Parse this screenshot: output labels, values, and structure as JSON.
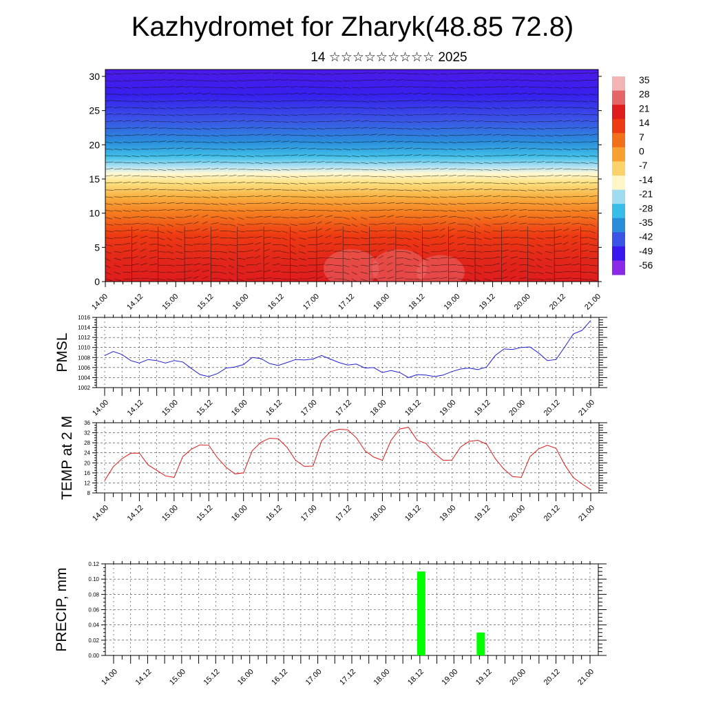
{
  "title": "Kazhydromet for Zharyk(48.85 72.8)",
  "subtitle": "14 ☆☆☆☆☆☆☆☆☆ 2025",
  "x_tick_labels": [
    "14.00",
    "14.12",
    "15.00",
    "15.12",
    "16.00",
    "16.12",
    "17.00",
    "17.12",
    "18.00",
    "18.12",
    "19.00",
    "19.12",
    "20.00",
    "20.12",
    "21.00"
  ],
  "chart_data": [
    {
      "type": "heatmap",
      "name": "cross-section",
      "x_ticks": [
        "14.00",
        "14.12",
        "15.00",
        "15.12",
        "16.00",
        "16.12",
        "17.00",
        "17.12",
        "18.00",
        "18.12",
        "19.00",
        "19.12",
        "20.00",
        "20.12",
        "21.00"
      ],
      "y_ticks": [
        0,
        5,
        10,
        15,
        20,
        25,
        30
      ],
      "ylim": [
        0,
        31
      ],
      "colorbar_labels": [
        "35",
        "28",
        "21",
        "14",
        "7",
        "0",
        "-7",
        "-14",
        "-21",
        "-28",
        "-35",
        "-42",
        "-49",
        "-56"
      ],
      "colorbar_colors": [
        "#f2b4b4",
        "#e56666",
        "#e01c1c",
        "#ee3a10",
        "#f2701a",
        "#f8a030",
        "#fcd36a",
        "#fff6c8",
        "#9fdcf0",
        "#38bde8",
        "#2a8ddc",
        "#3a55e6",
        "#3818ee",
        "#8a2ae6"
      ],
      "wind_overlay": true
    },
    {
      "type": "line",
      "name": "PMSL",
      "ylabel": "PMSL",
      "color": "#1f1fd8",
      "ylim": [
        1002,
        1016
      ],
      "yticks": [
        1002,
        1004,
        1006,
        1008,
        1010,
        1012,
        1014,
        1016
      ],
      "x": [
        0,
        1,
        2,
        3,
        4,
        5,
        6,
        7,
        8,
        9,
        10,
        11,
        12,
        13,
        14,
        15,
        16,
        17,
        18,
        19,
        20,
        21,
        22,
        23,
        24,
        25,
        26,
        27,
        28,
        29,
        30,
        31,
        32,
        33,
        34,
        35,
        36,
        37,
        38,
        39,
        40,
        41,
        42,
        43,
        44,
        45,
        46,
        47,
        48,
        49,
        50,
        51,
        52,
        53,
        54,
        55,
        56
      ],
      "values": [
        1008.4,
        1009.2,
        1008.6,
        1007.4,
        1006.9,
        1007.6,
        1007.4,
        1006.9,
        1007.4,
        1007.1,
        1005.8,
        1004.6,
        1004.2,
        1004.8,
        1005.9,
        1006.1,
        1006.6,
        1008.0,
        1007.8,
        1006.8,
        1006.4,
        1007.0,
        1007.6,
        1007.5,
        1007.7,
        1008.4,
        1007.7,
        1007.0,
        1006.5,
        1006.7,
        1005.9,
        1006.0,
        1005.0,
        1005.4,
        1005.0,
        1004.0,
        1004.6,
        1004.5,
        1004.2,
        1004.5,
        1005.2,
        1005.7,
        1005.9,
        1005.6,
        1006.1,
        1008.4,
        1009.7,
        1009.6,
        1010.0,
        1010.1,
        1008.9,
        1007.4,
        1007.6,
        1010.1,
        1012.7,
        1013.4,
        1015.4
      ]
    },
    {
      "type": "line",
      "name": "TEMP at 2 M",
      "ylabel": "TEMP at 2 M",
      "color": "#e01818",
      "ylim": [
        8,
        36
      ],
      "yticks": [
        8,
        12,
        16,
        20,
        24,
        28,
        32,
        36
      ],
      "x": [
        0,
        1,
        2,
        3,
        4,
        5,
        6,
        7,
        8,
        9,
        10,
        11,
        12,
        13,
        14,
        15,
        16,
        17,
        18,
        19,
        20,
        21,
        22,
        23,
        24,
        25,
        26,
        27,
        28,
        29,
        30,
        31,
        32,
        33,
        34,
        35,
        36,
        37,
        38,
        39,
        40,
        41,
        42,
        43,
        44,
        45,
        46,
        47,
        48,
        49,
        50,
        51,
        52,
        53,
        54,
        55,
        56
      ],
      "values": [
        13,
        18.5,
        21.7,
        23.8,
        23.9,
        19.2,
        17.0,
        14.8,
        14.2,
        22.5,
        25.5,
        27.2,
        27.0,
        22.0,
        18.2,
        15.6,
        16.0,
        24.8,
        28.2,
        29.8,
        29.6,
        26.2,
        21.0,
        18.6,
        18.7,
        28.8,
        32.4,
        33.4,
        33.2,
        30.0,
        24.8,
        22.3,
        21.0,
        29.0,
        33.5,
        34.2,
        29.0,
        27.8,
        23.8,
        21.0,
        21.1,
        26.3,
        28.6,
        29.0,
        27.5,
        21.7,
        17.5,
        14.5,
        14.2,
        22.5,
        25.6,
        27.0,
        25.8,
        19.2,
        14.1,
        11.6,
        9.3
      ]
    },
    {
      "type": "bar",
      "name": "PRECIP, mm",
      "ylabel": "PRECIP, mm",
      "color": "#00ff00",
      "ylim": [
        0,
        0.12
      ],
      "yticks": [
        0.0,
        0.02,
        0.04,
        0.06,
        0.08,
        0.1,
        0.12
      ],
      "ytick_labels": [
        "0.00",
        "0.02",
        "0.04",
        "0.06",
        "0.08",
        "0.10",
        "0.12"
      ],
      "x": [
        36,
        43
      ],
      "values": [
        0.11,
        0.03
      ]
    }
  ]
}
